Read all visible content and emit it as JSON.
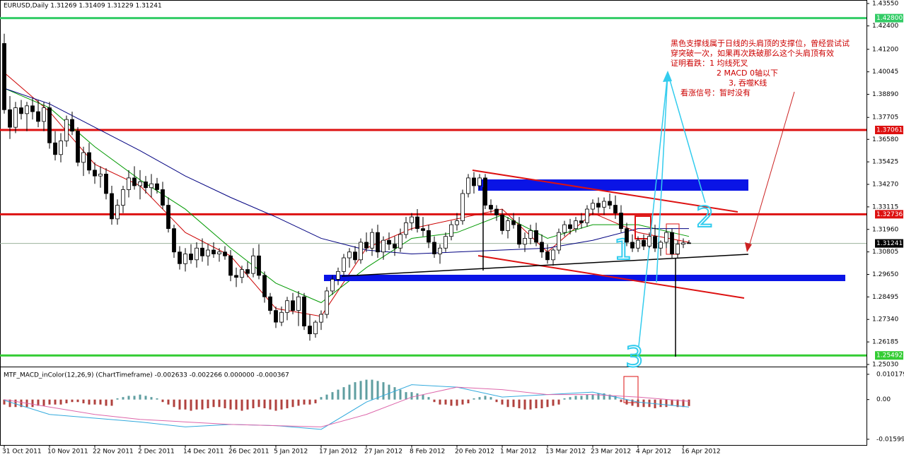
{
  "chart_data": {
    "type": "candlestick",
    "title": "EURUSD,Daily  1.31269 1.31409 1.31229 1.31241",
    "categories": [
      "31 Oct 2011",
      null,
      null,
      null,
      null,
      null,
      null,
      null,
      "10 Nov 2011",
      null,
      null,
      null,
      null,
      null,
      null,
      null,
      "22 Nov 2011",
      null,
      null,
      null,
      null,
      null,
      null,
      null,
      "2 Dec 2011",
      null,
      null,
      null,
      null,
      null,
      null,
      null,
      "14 Dec 2011",
      null,
      null,
      null,
      null,
      null,
      null,
      null,
      "26 Dec 2011",
      null,
      null,
      null,
      null,
      null,
      null,
      null,
      "5 Jan 2012",
      null,
      null,
      null,
      null,
      null,
      null,
      null,
      "17 Jan 2012",
      null,
      null,
      null,
      null,
      null,
      null,
      null,
      "27 Jan 2012",
      null,
      null,
      null,
      null,
      null,
      null,
      null,
      "8 Feb 2012",
      null,
      null,
      null,
      null,
      null,
      null,
      null,
      "20 Feb 2012",
      null,
      null,
      null,
      null,
      null,
      null,
      null,
      "1 Mar 2012",
      null,
      null,
      null,
      null,
      null,
      null,
      null,
      "13 Mar 2012",
      null,
      null,
      null,
      null,
      null,
      null,
      null,
      "23 Mar 2012",
      null,
      null,
      null,
      null,
      null,
      null,
      null,
      "4 Apr 2012",
      null,
      null,
      null,
      null,
      null,
      null,
      null,
      "16 Apr 2012",
      null
    ],
    "ohlc": [
      [
        1.415,
        1.42,
        1.379,
        1.381
      ],
      [
        1.381,
        1.388,
        1.366,
        1.372
      ],
      [
        1.372,
        1.385,
        1.369,
        1.382
      ],
      [
        1.382,
        1.386,
        1.376,
        1.379
      ],
      [
        1.379,
        1.385,
        1.37,
        1.383
      ],
      [
        1.383,
        1.387,
        1.376,
        1.38
      ],
      [
        1.38,
        1.386,
        1.372,
        1.375
      ],
      [
        1.375,
        1.385,
        1.37,
        1.382
      ],
      [
        1.382,
        1.385,
        1.361,
        1.364
      ],
      [
        1.364,
        1.37,
        1.355,
        1.358
      ],
      [
        1.358,
        1.369,
        1.354,
        1.365
      ],
      [
        1.365,
        1.378,
        1.362,
        1.376
      ],
      [
        1.376,
        1.38,
        1.368,
        1.37
      ],
      [
        1.37,
        1.372,
        1.352,
        1.354
      ],
      [
        1.354,
        1.362,
        1.347,
        1.359
      ],
      [
        1.359,
        1.364,
        1.348,
        1.35
      ],
      [
        1.35,
        1.354,
        1.343,
        1.347
      ],
      [
        1.347,
        1.352,
        1.341,
        1.348
      ],
      [
        1.348,
        1.351,
        1.335,
        1.338
      ],
      [
        1.338,
        1.342,
        1.322,
        1.325
      ],
      [
        1.325,
        1.335,
        1.322,
        1.332
      ],
      [
        1.332,
        1.342,
        1.328,
        1.34
      ],
      [
        1.34,
        1.35,
        1.336,
        1.346
      ],
      [
        1.346,
        1.352,
        1.34,
        1.342
      ],
      [
        1.342,
        1.35,
        1.335,
        1.344
      ],
      [
        1.344,
        1.347,
        1.338,
        1.341
      ],
      [
        1.341,
        1.348,
        1.336,
        1.343
      ],
      [
        1.343,
        1.346,
        1.338,
        1.34
      ],
      [
        1.34,
        1.344,
        1.33,
        1.332
      ],
      [
        1.332,
        1.336,
        1.318,
        1.32
      ],
      [
        1.32,
        1.322,
        1.305,
        1.308
      ],
      [
        1.308,
        1.311,
        1.299,
        1.302
      ],
      [
        1.302,
        1.31,
        1.298,
        1.307
      ],
      [
        1.307,
        1.312,
        1.302,
        1.304
      ],
      [
        1.304,
        1.313,
        1.3,
        1.31
      ],
      [
        1.31,
        1.315,
        1.303,
        1.306
      ],
      [
        1.306,
        1.312,
        1.301,
        1.309
      ],
      [
        1.309,
        1.313,
        1.305,
        1.307
      ],
      [
        1.307,
        1.31,
        1.303,
        1.308
      ],
      [
        1.308,
        1.311,
        1.304,
        1.306
      ],
      [
        1.306,
        1.309,
        1.293,
        1.296
      ],
      [
        1.296,
        1.3,
        1.29,
        1.295
      ],
      [
        1.295,
        1.301,
        1.292,
        1.299
      ],
      [
        1.299,
        1.303,
        1.295,
        1.297
      ],
      [
        1.297,
        1.31,
        1.295,
        1.306
      ],
      [
        1.306,
        1.312,
        1.294,
        1.296
      ],
      [
        1.296,
        1.298,
        1.282,
        1.285
      ],
      [
        1.285,
        1.287,
        1.276,
        1.278
      ],
      [
        1.278,
        1.28,
        1.269,
        1.272
      ],
      [
        1.272,
        1.28,
        1.27,
        1.277
      ],
      [
        1.277,
        1.285,
        1.273,
        1.283
      ],
      [
        1.283,
        1.287,
        1.276,
        1.278
      ],
      [
        1.278,
        1.288,
        1.27,
        1.285
      ],
      [
        1.285,
        1.287,
        1.268,
        1.27
      ],
      [
        1.27,
        1.276,
        1.2625,
        1.266
      ],
      [
        1.266,
        1.273,
        1.264,
        1.272
      ],
      [
        1.272,
        1.278,
        1.268,
        1.276
      ],
      [
        1.276,
        1.29,
        1.274,
        1.288
      ],
      [
        1.288,
        1.296,
        1.286,
        1.294
      ],
      [
        1.294,
        1.3,
        1.291,
        1.298
      ],
      [
        1.298,
        1.307,
        1.296,
        1.305
      ],
      [
        1.305,
        1.31,
        1.3,
        1.308
      ],
      [
        1.308,
        1.311,
        1.302,
        1.304
      ],
      [
        1.304,
        1.315,
        1.302,
        1.313
      ],
      [
        1.313,
        1.318,
        1.308,
        1.31
      ],
      [
        1.31,
        1.32,
        1.306,
        1.318
      ],
      [
        1.318,
        1.322,
        1.305,
        1.308
      ],
      [
        1.308,
        1.316,
        1.304,
        1.314
      ],
      [
        1.314,
        1.318,
        1.309,
        1.312
      ],
      [
        1.312,
        1.316,
        1.306,
        1.31
      ],
      [
        1.31,
        1.32,
        1.308,
        1.317
      ],
      [
        1.317,
        1.326,
        1.315,
        1.323
      ],
      [
        1.323,
        1.328,
        1.319,
        1.326
      ],
      [
        1.326,
        1.33,
        1.318,
        1.32
      ],
      [
        1.32,
        1.326,
        1.316,
        1.319
      ],
      [
        1.319,
        1.322,
        1.31,
        1.313
      ],
      [
        1.313,
        1.316,
        1.305,
        1.307
      ],
      [
        1.307,
        1.312,
        1.302,
        1.31
      ],
      [
        1.31,
        1.318,
        1.308,
        1.316
      ],
      [
        1.316,
        1.324,
        1.314,
        1.322
      ],
      [
        1.322,
        1.328,
        1.319,
        1.324
      ],
      [
        1.324,
        1.34,
        1.322,
        1.338
      ],
      [
        1.338,
        1.348,
        1.336,
        1.346
      ],
      [
        1.346,
        1.349,
        1.338,
        1.342
      ],
      [
        1.342,
        1.348,
        1.34,
        1.346
      ],
      [
        1.346,
        1.348,
        1.33,
        1.332
      ],
      [
        1.332,
        1.335,
        1.328,
        1.33
      ],
      [
        1.33,
        1.332,
        1.324,
        1.327
      ],
      [
        1.327,
        1.33,
        1.317,
        1.319
      ],
      [
        1.319,
        1.326,
        1.315,
        1.324
      ],
      [
        1.324,
        1.328,
        1.32,
        1.322
      ],
      [
        1.322,
        1.326,
        1.31,
        1.312
      ],
      [
        1.312,
        1.318,
        1.308,
        1.315
      ],
      [
        1.315,
        1.322,
        1.312,
        1.319
      ],
      [
        1.319,
        1.323,
        1.311,
        1.313
      ],
      [
        1.313,
        1.317,
        1.305,
        1.308
      ],
      [
        1.308,
        1.312,
        1.302,
        1.304
      ],
      [
        1.304,
        1.31,
        1.301,
        1.309
      ],
      [
        1.309,
        1.32,
        1.307,
        1.318
      ],
      [
        1.318,
        1.324,
        1.316,
        1.322
      ],
      [
        1.322,
        1.325,
        1.317,
        1.32
      ],
      [
        1.32,
        1.326,
        1.318,
        1.324
      ],
      [
        1.324,
        1.328,
        1.32,
        1.323
      ],
      [
        1.323,
        1.332,
        1.321,
        1.33
      ],
      [
        1.33,
        1.335,
        1.327,
        1.333
      ],
      [
        1.333,
        1.336,
        1.328,
        1.331
      ],
      [
        1.331,
        1.336,
        1.327,
        1.334
      ],
      [
        1.334,
        1.338,
        1.33,
        1.332
      ],
      [
        1.332,
        1.337,
        1.325,
        1.328
      ],
      [
        1.328,
        1.332,
        1.318,
        1.32
      ],
      [
        1.32,
        1.323,
        1.311,
        1.313
      ],
      [
        1.313,
        1.317,
        1.308,
        1.31
      ],
      [
        1.31,
        1.316,
        1.308,
        1.314
      ],
      [
        1.314,
        1.317,
        1.309,
        1.311
      ],
      [
        1.311,
        1.318,
        1.31,
        1.316
      ],
      [
        1.316,
        1.322,
        1.308,
        1.31
      ],
      [
        1.31,
        1.314,
        1.306,
        1.313
      ],
      [
        1.313,
        1.32,
        1.31,
        1.318
      ],
      [
        1.318,
        1.32,
        1.305,
        1.307
      ],
      [
        1.307,
        1.314,
        1.305,
        1.312
      ],
      [
        1.312,
        1.315,
        1.31,
        1.3127
      ],
      [
        1.31269,
        1.31409,
        1.31229,
        1.31241
      ]
    ],
    "ylim": [
      1.2492,
      1.4373
    ],
    "yticks": [
      {
        "value": 1.4355,
        "label": "1.43550"
      },
      {
        "value": 1.424,
        "label": "1.42400"
      },
      {
        "value": 1.412,
        "label": "1.41200"
      },
      {
        "value": 1.40045,
        "label": "1.40045"
      },
      {
        "value": 1.3889,
        "label": "1.38890"
      },
      {
        "value": 1.37705,
        "label": "1.37705"
      },
      {
        "value": 1.3658,
        "label": "1.36580"
      },
      {
        "value": 1.35425,
        "label": "1.35425"
      },
      {
        "value": 1.3427,
        "label": "1.34270"
      },
      {
        "value": 1.33115,
        "label": "1.33115"
      },
      {
        "value": 1.3196,
        "label": "1.31960"
      },
      {
        "value": 1.30805,
        "label": "1.30805"
      },
      {
        "value": 1.2965,
        "label": "1.29650"
      },
      {
        "value": 1.28495,
        "label": "1.28495"
      },
      {
        "value": 1.2734,
        "label": "1.27340"
      },
      {
        "value": 1.26185,
        "label": "1.26185"
      },
      {
        "value": 1.2503,
        "label": "1.25030"
      }
    ],
    "up_color": "#ffffff",
    "down_color": "#000000",
    "moving_averages": [
      {
        "color": "#cc0000",
        "x": [
          0,
          8,
          16,
          24,
          32,
          40,
          48,
          56,
          64,
          72,
          80,
          88,
          96,
          104,
          112,
          121
        ],
        "values": [
          1.4,
          1.38,
          1.353,
          1.342,
          1.318,
          1.306,
          1.279,
          1.275,
          1.31,
          1.32,
          1.325,
          1.33,
          1.308,
          1.328,
          1.318,
          1.313
        ]
      },
      {
        "color": "#009900",
        "x": [
          0,
          8,
          16,
          24,
          32,
          40,
          48,
          56,
          64,
          72,
          80,
          88,
          96,
          104,
          112,
          121
        ],
        "values": [
          1.392,
          1.382,
          1.362,
          1.345,
          1.33,
          1.31,
          1.292,
          1.282,
          1.3,
          1.315,
          1.318,
          1.327,
          1.315,
          1.322,
          1.322,
          1.316
        ]
      },
      {
        "color": "#000080",
        "x": [
          0,
          8,
          16,
          24,
          32,
          40,
          48,
          56,
          64,
          72,
          80,
          88,
          96,
          104,
          112,
          121
        ],
        "values": [
          1.392,
          1.384,
          1.372,
          1.36,
          1.347,
          1.336,
          1.326,
          1.315,
          1.309,
          1.307,
          1.308,
          1.309,
          1.31,
          1.314,
          1.32,
          1.32
        ]
      }
    ],
    "hlines": [
      {
        "value": 1.428,
        "label": "1.42800",
        "color": "#33cc66"
      },
      {
        "value": 1.37061,
        "label": "1.37061",
        "color": "#dd1111"
      },
      {
        "value": 1.32736,
        "label": "1.32736",
        "color": "#dd1111"
      },
      {
        "value": 1.31241,
        "label": "1.31241",
        "color": "#000000"
      },
      {
        "value": 1.25492,
        "label": "1.25492",
        "color": "#33cc33"
      }
    ],
    "annotations": {
      "note": [
        "黑色支撑线属于日线的头肩顶的支撑位，曾经尝试试",
        "穿突破一次，如果再次跌破那么这个头肩顶有效",
        "证明看跌：1 均线死叉",
        "2 MACD 0轴以下",
        "3, 吞噬K线",
        "看涨信号：暂时没有"
      ],
      "marks": [
        "1",
        "2",
        "3"
      ]
    },
    "macd": {
      "title": "MTF_MACD_inColor(12,26,9) (ChartTimeframe) -0.002633 -0.002266 0.000000 -0.000367",
      "ylim": [
        -0.0183,
        0.013
      ],
      "yticks": [
        0.010179,
        {
          "value": 0,
          "label": "0.00"
        },
        -0.01599
      ],
      "up_color": "#5f9ea0",
      "down_color": "#b0413e",
      "histogram": [
        -0.002,
        -0.003,
        -0.003,
        -0.003,
        -0.003,
        -0.003,
        -0.0025,
        -0.0025,
        -0.002,
        -0.002,
        -0.002,
        -0.0015,
        -0.001,
        -0.001,
        -0.0015,
        -0.002,
        -0.002,
        -0.002,
        -0.0025,
        -0.0025,
        0.0005,
        0.001,
        0.0015,
        0.0015,
        0.002,
        0.0015,
        0.001,
        0.0005,
        -0.001,
        -0.002,
        -0.003,
        -0.004,
        -0.004,
        -0.0045,
        -0.004,
        -0.004,
        -0.0035,
        -0.003,
        -0.003,
        -0.0035,
        -0.004,
        -0.004,
        -0.0045,
        -0.004,
        -0.0035,
        -0.003,
        -0.0035,
        -0.004,
        -0.0045,
        -0.004,
        -0.0035,
        -0.003,
        -0.0025,
        -0.002,
        -0.002,
        -0.0015,
        0.001,
        0.002,
        0.003,
        0.004,
        0.005,
        0.006,
        0.007,
        0.0075,
        0.008,
        0.008,
        0.0075,
        0.007,
        0.006,
        0.005,
        0.004,
        0.003,
        0.003,
        0.0025,
        0.002,
        0.001,
        -0.001,
        -0.002,
        -0.002,
        -0.0025,
        -0.0025,
        -0.002,
        -0.0015,
        0.0005,
        0.001,
        0.0015,
        0.001,
        -0.001,
        -0.002,
        -0.003,
        -0.003,
        -0.0035,
        -0.004,
        -0.004,
        -0.0035,
        -0.0035,
        -0.003,
        -0.0025,
        -0.002,
        0.0005,
        0.001,
        0.0015,
        0.0015,
        0.002,
        0.002,
        0.0025,
        0.0025,
        0.002,
        0.0015,
        -0.001,
        -0.002,
        -0.0025,
        -0.003,
        -0.003,
        -0.003,
        -0.0035,
        -0.003,
        -0.003,
        -0.0025,
        -0.003,
        -0.003,
        -0.0026
      ],
      "lines": [
        {
          "color": "#33aadd",
          "x": [
            0,
            8,
            16,
            24,
            32,
            40,
            48,
            56,
            64,
            72,
            80,
            88,
            96,
            104,
            112,
            121
          ],
          "values": [
            -0.0003,
            -0.006,
            -0.0075,
            -0.009,
            -0.011,
            -0.01,
            -0.0105,
            -0.012,
            -0.001,
            0.006,
            0.005,
            0.001,
            0.002,
            0.003,
            -0.001,
            -0.003
          ]
        },
        {
          "color": "#dd66aa",
          "x": [
            0,
            8,
            16,
            24,
            32,
            40,
            48,
            56,
            64,
            72,
            80,
            88,
            96,
            104,
            112,
            121
          ],
          "values": [
            0.0,
            -0.003,
            -0.006,
            -0.008,
            -0.009,
            -0.01,
            -0.0105,
            -0.011,
            -0.006,
            0.001,
            0.005,
            0.004,
            0.002,
            0.002,
            0.001,
            -0.0007
          ]
        }
      ]
    }
  }
}
